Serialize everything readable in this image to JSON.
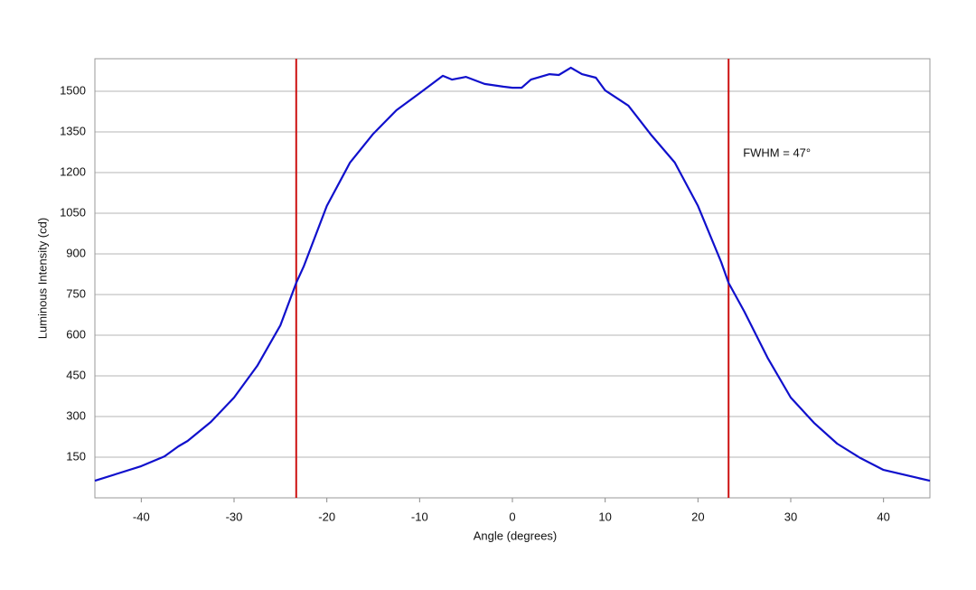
{
  "chart_data": {
    "type": "line",
    "x_label": "Angle (degrees)",
    "y_label": "Luminous Intensity (cd)",
    "annotation": "FWHM = 47°",
    "x": [
      -45,
      -42.5,
      -40,
      -37.5,
      -36,
      -35,
      -32.5,
      -30,
      -27.5,
      -25,
      -23.3,
      -22.5,
      -20,
      -17.5,
      -15,
      -12.5,
      -10,
      -7.5,
      -6.5,
      -5,
      -3,
      -1,
      0,
      1,
      2,
      4,
      5,
      6.3,
      7.5,
      9,
      10,
      12.5,
      15,
      17.5,
      20,
      22.5,
      23.3,
      25,
      27.5,
      30,
      32.5,
      35,
      37.5,
      40,
      42.5,
      45
    ],
    "series": [
      {
        "color": "#1010cc",
        "values": [
          63,
          90,
          117,
          153,
          190,
          210,
          280,
          370,
          487,
          637,
          793,
          853,
          1077,
          1237,
          1343,
          1430,
          1493,
          1557,
          1543,
          1553,
          1527,
          1517,
          1513,
          1513,
          1543,
          1563,
          1560,
          1587,
          1563,
          1550,
          1503,
          1447,
          1337,
          1237,
          1077,
          870,
          793,
          687,
          517,
          370,
          277,
          200,
          147,
          103,
          83,
          63
        ]
      }
    ],
    "vlines": [
      -23.3,
      23.3
    ],
    "vline_color": "#cc1111",
    "xlim": [
      -45,
      45
    ],
    "xticks": [
      -40,
      -30,
      -20,
      -10,
      0,
      10,
      20,
      30,
      40
    ],
    "ylim": [
      0,
      1620
    ],
    "yticks": [
      150,
      300,
      450,
      600,
      750,
      900,
      1050,
      1200,
      1350,
      1500
    ],
    "grid": true
  }
}
